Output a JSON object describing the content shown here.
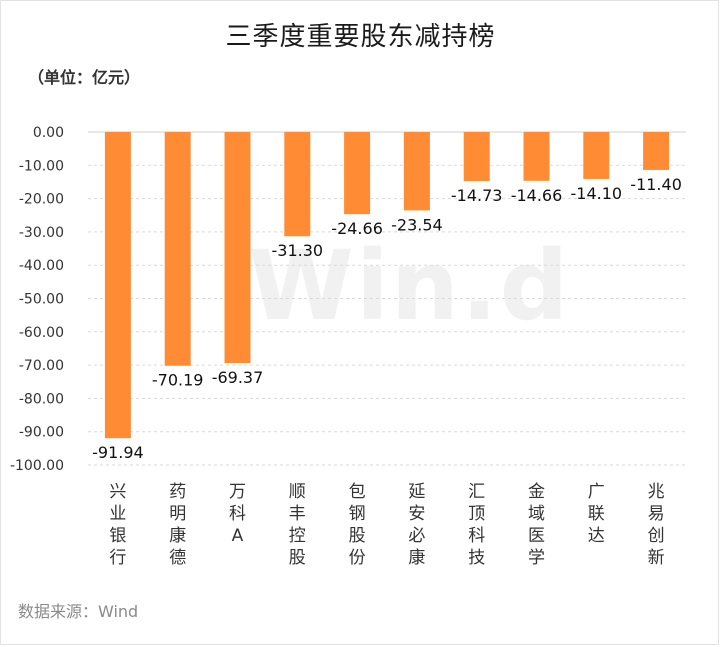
{
  "header": {
    "title": "三季度重要股东减持榜",
    "unit": "（单位：亿元）"
  },
  "footer": {
    "source": "数据来源：Wind"
  },
  "watermark": "Win.d",
  "colors": {
    "bar": "#FF8C35",
    "grid": "#d9d9d9",
    "axis_text": "#333333"
  },
  "chart_data": {
    "type": "bar",
    "categories": [
      "兴业银行",
      "药明康德",
      "万科A",
      "顺丰控股",
      "包钢股份",
      "延安必康",
      "汇顶科技",
      "金域医学",
      "广联达",
      "兆易创新"
    ],
    "values": [
      -91.94,
      -70.19,
      -69.37,
      -31.3,
      -24.66,
      -23.54,
      -14.73,
      -14.66,
      -14.1,
      -11.4
    ],
    "value_labels": [
      "-91.94",
      "-70.19",
      "-69.37",
      "-31.30",
      "-24.66",
      "-23.54",
      "-14.73",
      "-14.66",
      "-14.10",
      "-11.40"
    ],
    "yticks": [
      0,
      -10,
      -20,
      -30,
      -40,
      -50,
      -60,
      -70,
      -80,
      -90,
      -100
    ],
    "ytick_labels": [
      "0.00",
      "-10.00",
      "-20.00",
      "-30.00",
      "-40.00",
      "-50.00",
      "-60.00",
      "-70.00",
      "-80.00",
      "-90.00",
      "-100.00"
    ],
    "ylim": [
      -100,
      0
    ],
    "grid": true,
    "legend": false,
    "xlabel": "",
    "ylabel": ""
  }
}
